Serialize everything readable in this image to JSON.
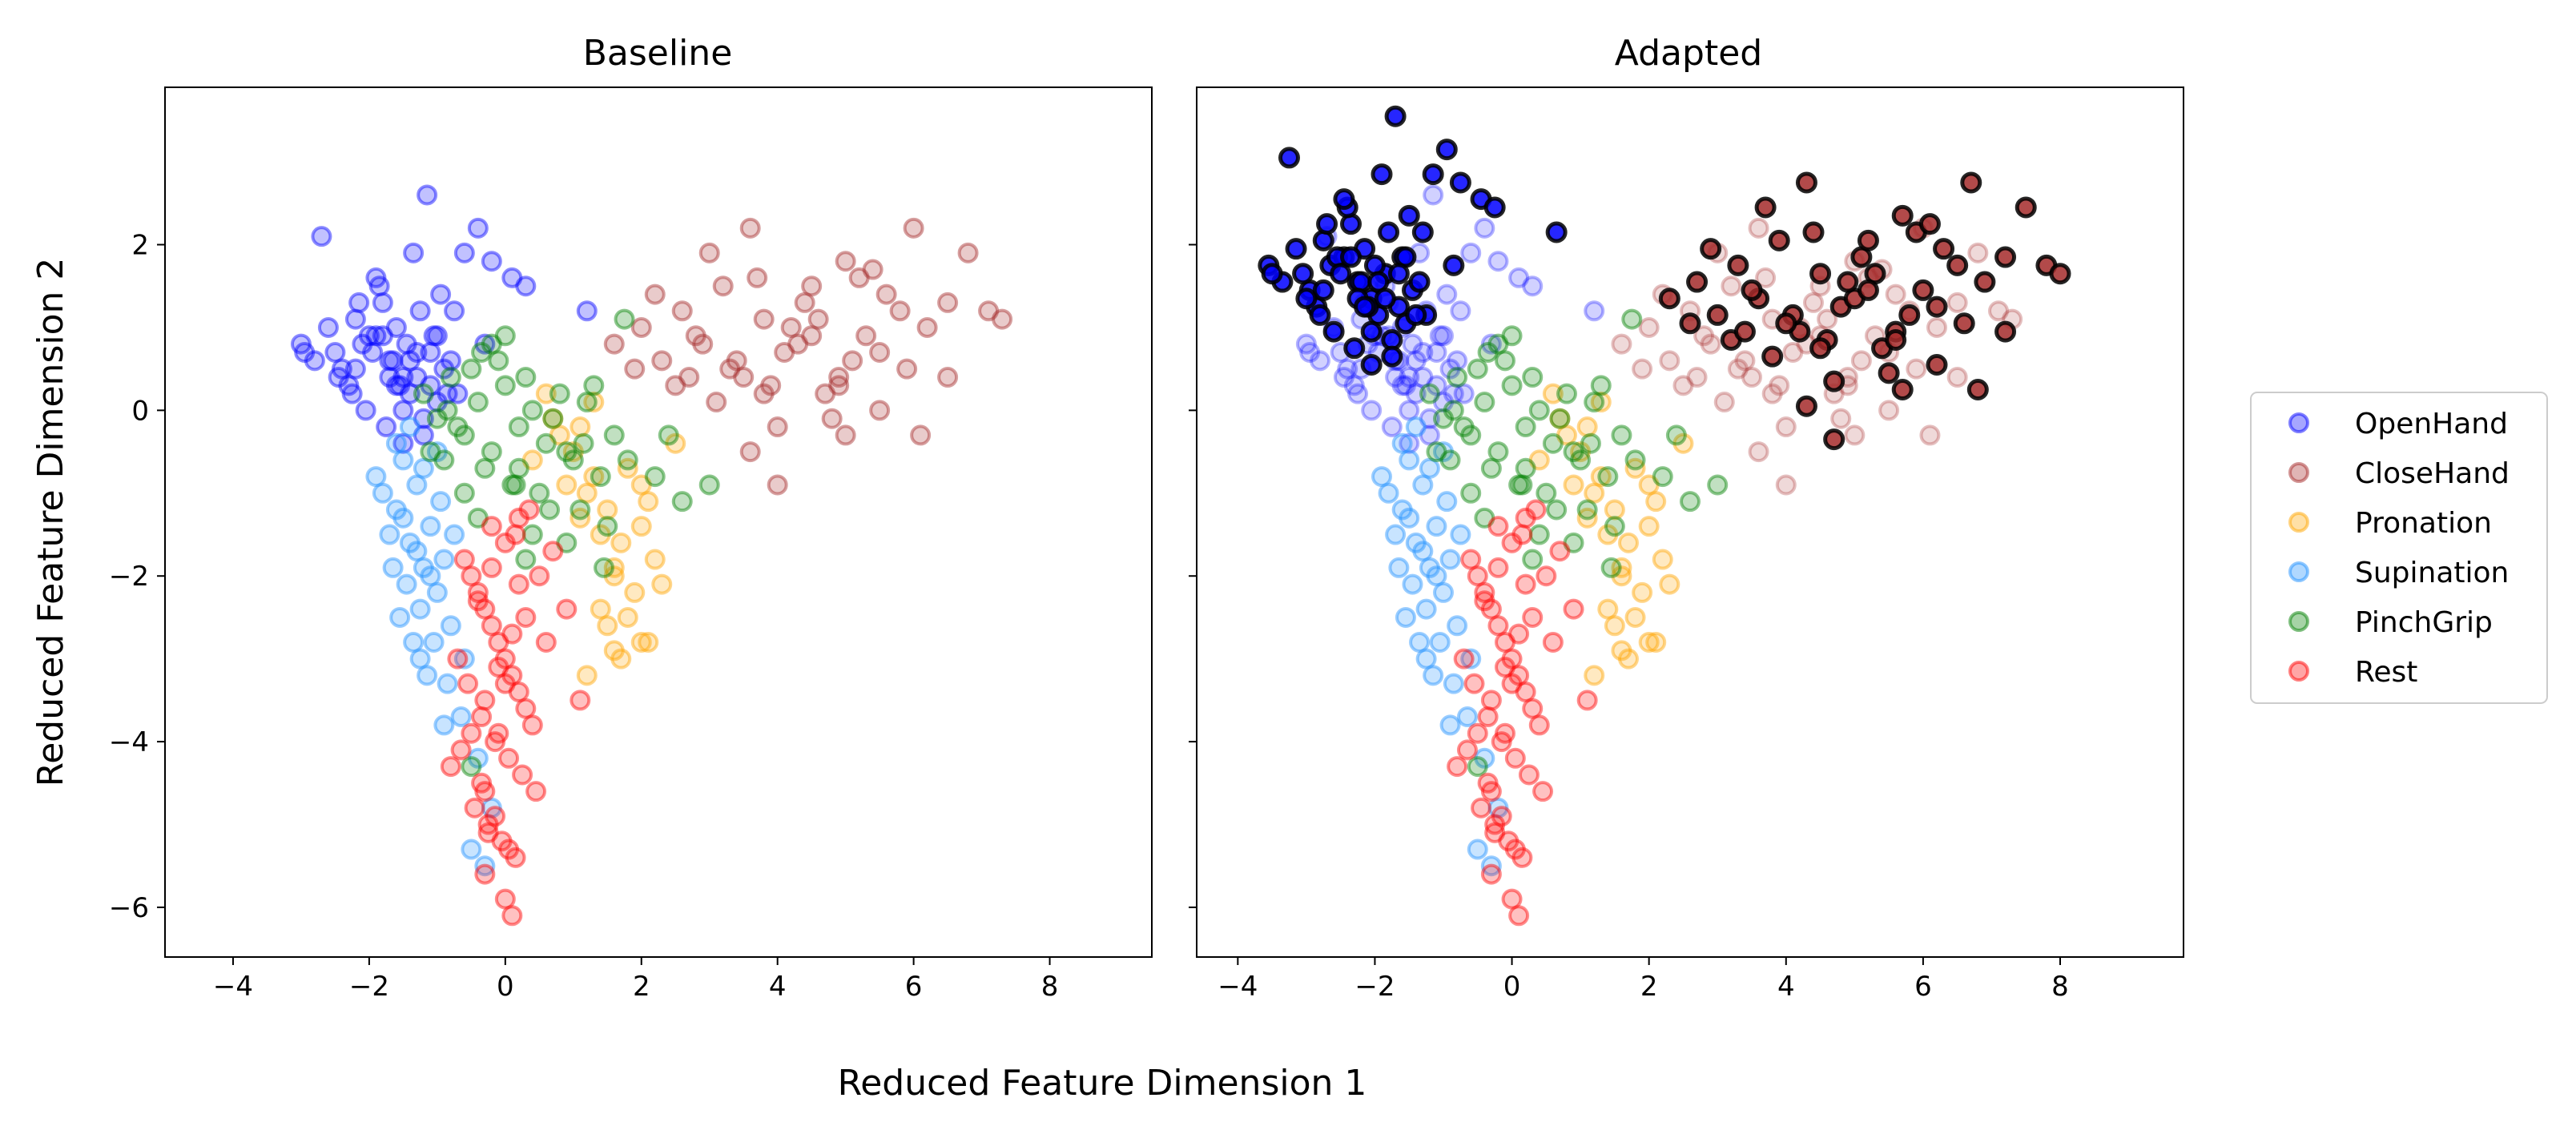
{
  "chart_data": {
    "type": "scatter",
    "xlabel": "Reduced Feature Dimension 1",
    "ylabel": "Reduced Feature Dimension 2",
    "sharey": true,
    "legend_position": "right-center",
    "legend": [
      "OpenHand",
      "CloseHand",
      "Pronation",
      "Supination",
      "PinchGrip",
      "Rest"
    ],
    "colors": {
      "OpenHand": "#0000ff",
      "CloseHand": "#a52a2a",
      "Pronation": "#ffa500",
      "Supination": "#1e90ff",
      "PinchGrip": "#008000",
      "Rest": "#ff0000",
      "highlight_edge": "#000000"
    },
    "panels": [
      {
        "title": "Baseline",
        "xlim": [
          -5,
          9.5
        ],
        "ylim": [
          -6.6,
          3.9
        ],
        "xticks": [
          -4,
          -2,
          0,
          2,
          4,
          6,
          8
        ],
        "yticks": [
          -6,
          -4,
          -2,
          0,
          2
        ],
        "highlighted_classes": []
      },
      {
        "title": "Adapted",
        "xlim": [
          -4.6,
          9.8
        ],
        "ylim": [
          -6.6,
          3.9
        ],
        "xticks": [
          -4,
          -2,
          0,
          2,
          4,
          6,
          8
        ],
        "yticks": [
          -6,
          -4,
          -2,
          0,
          2
        ],
        "highlighted_classes": [
          "OpenHand",
          "CloseHand"
        ]
      }
    ],
    "series": [
      {
        "name": "OpenHand",
        "alpha": 0.35,
        "x": [
          -2.4,
          -2.1,
          -1.9,
          -1.7,
          -1.5,
          -1.3,
          -1.1,
          -0.9,
          -0.7,
          -2.2,
          -1.8,
          -1.6,
          -1.4,
          -1.2,
          -1.0,
          -2.5,
          -2.3,
          -2.0,
          -1.85,
          -1.65,
          -1.45,
          -1.25,
          -1.05,
          -2.8,
          -3.0,
          -2.6,
          -1.9,
          -2.05,
          -1.75,
          -1.55,
          -0.6,
          -0.4,
          -0.2,
          -2.7,
          -2.95,
          -1.35,
          -1.15,
          -0.85,
          -2.15,
          -1.95,
          -1.7,
          -1.5,
          -0.95,
          -0.75,
          -0.3,
          0.1,
          0.3,
          1.2,
          -2.2,
          -1.8,
          -1.6,
          -1.4,
          -1.2,
          -2.45,
          -2.25,
          -1.0,
          -0.8,
          -1.3,
          -1.1,
          -1.5
        ],
        "y": [
          0.5,
          0.8,
          0.9,
          0.6,
          0.4,
          0.7,
          0.3,
          0.5,
          0.2,
          1.1,
          1.3,
          1.0,
          0.2,
          -0.1,
          0.1,
          0.7,
          0.3,
          0.9,
          1.5,
          0.6,
          0.8,
          1.2,
          0.9,
          0.6,
          0.8,
          1.0,
          1.6,
          0.0,
          -0.2,
          0.3,
          1.9,
          2.2,
          1.8,
          2.1,
          0.7,
          1.9,
          2.6,
          0.2,
          1.3,
          0.7,
          0.4,
          -0.4,
          1.4,
          1.2,
          0.8,
          1.6,
          1.5,
          1.2,
          0.5,
          0.9,
          0.3,
          0.6,
          -0.3,
          0.4,
          0.2,
          0.9,
          0.6,
          0.4,
          0.7,
          0.0
        ]
      },
      {
        "name": "CloseHand",
        "alpha": 0.35,
        "x": [
          2.0,
          2.3,
          2.6,
          2.9,
          3.2,
          3.5,
          3.8,
          4.1,
          4.4,
          4.7,
          5.0,
          5.3,
          5.6,
          5.9,
          6.2,
          6.5,
          6.8,
          7.1,
          2.5,
          2.8,
          3.1,
          3.4,
          3.7,
          4.0,
          4.3,
          4.6,
          4.9,
          5.2,
          5.5,
          5.8,
          6.1,
          3.0,
          3.3,
          3.6,
          3.9,
          4.2,
          4.5,
          4.8,
          5.1,
          5.4,
          1.6,
          1.9,
          2.2,
          3.6,
          4.0,
          5.0,
          5.5,
          6.0,
          6.5,
          7.3,
          4.5,
          3.8,
          2.7,
          4.9
        ],
        "y": [
          1.0,
          0.6,
          1.2,
          0.8,
          1.5,
          0.4,
          1.1,
          0.7,
          1.3,
          0.2,
          1.8,
          0.9,
          1.4,
          0.5,
          1.0,
          0.4,
          1.9,
          1.2,
          0.3,
          0.9,
          0.1,
          0.6,
          1.6,
          -0.2,
          0.8,
          1.1,
          0.4,
          1.6,
          0.7,
          1.2,
          -0.3,
          1.9,
          0.5,
          2.2,
          0.3,
          1.0,
          1.5,
          -0.1,
          0.6,
          1.7,
          0.8,
          0.5,
          1.4,
          -0.5,
          -0.9,
          -0.3,
          0.0,
          2.2,
          1.3,
          1.1,
          0.9,
          0.2,
          0.4,
          0.3
        ]
      },
      {
        "name": "Pronation",
        "alpha": 0.35,
        "x": [
          1.0,
          1.2,
          1.4,
          1.6,
          1.8,
          2.0,
          2.2,
          1.1,
          1.3,
          1.5,
          1.7,
          1.9,
          2.1,
          0.8,
          0.6,
          0.4,
          0.9,
          1.5,
          1.7,
          2.0,
          2.3,
          2.5,
          1.2,
          1.4,
          1.6,
          1.8,
          2.1,
          1.3,
          1.1,
          0.7,
          2.0,
          1.6
        ],
        "y": [
          -0.5,
          -1.0,
          -1.5,
          -2.0,
          -2.5,
          -2.8,
          -1.8,
          -0.2,
          -0.8,
          -1.2,
          -1.6,
          -2.2,
          -1.1,
          -0.3,
          0.2,
          -0.6,
          -0.9,
          -2.6,
          -3.0,
          -1.4,
          -2.1,
          -0.4,
          -3.2,
          -2.4,
          -1.9,
          -0.7,
          -2.8,
          0.1,
          -1.3,
          -0.1,
          -0.9,
          -2.9
        ]
      },
      {
        "name": "Supination",
        "alpha": 0.35,
        "x": [
          -1.8,
          -1.6,
          -1.4,
          -1.2,
          -1.0,
          -0.8,
          -0.6,
          -1.5,
          -1.3,
          -1.1,
          -0.9,
          -1.7,
          -1.9,
          -1.45,
          -1.25,
          -1.05,
          -0.85,
          -0.65,
          -1.55,
          -1.35,
          -1.15,
          -0.95,
          -0.75,
          -1.6,
          -1.4,
          -1.2,
          -1.0,
          -1.5,
          -1.3,
          -1.1,
          -0.5,
          -0.3,
          -0.4,
          -0.2,
          -1.65,
          -1.25,
          -0.9
        ],
        "y": [
          -1.0,
          -1.2,
          -1.6,
          -1.9,
          -2.2,
          -2.6,
          -3.0,
          -0.6,
          -0.9,
          -1.4,
          -1.8,
          -1.5,
          -0.8,
          -2.1,
          -2.4,
          -2.8,
          -3.3,
          -3.7,
          -2.5,
          -2.8,
          -3.2,
          -1.1,
          -1.5,
          -0.4,
          -0.2,
          -0.7,
          -0.5,
          -1.3,
          -1.7,
          -2.0,
          -5.3,
          -5.5,
          -4.2,
          -4.8,
          -1.9,
          -3.0,
          -3.8
        ]
      },
      {
        "name": "PinchGrip",
        "alpha": 0.35,
        "x": [
          -1.2,
          -1.0,
          -0.8,
          -0.6,
          -0.4,
          -0.2,
          0.0,
          0.2,
          0.4,
          0.6,
          0.8,
          1.0,
          1.2,
          1.4,
          1.6,
          -0.9,
          -0.7,
          -0.5,
          -0.3,
          -0.1,
          0.1,
          0.3,
          0.5,
          0.7,
          0.9,
          1.1,
          1.3,
          1.5,
          -0.6,
          -0.4,
          -0.2,
          0.0,
          0.2,
          0.4,
          -1.1,
          -0.85,
          -0.35,
          0.15,
          0.65,
          1.15,
          1.75,
          2.2,
          2.6,
          3.0,
          0.9,
          1.8,
          -0.5,
          0.3,
          1.45,
          2.4
        ],
        "y": [
          0.2,
          -0.1,
          0.4,
          -0.3,
          0.1,
          -0.5,
          0.3,
          -0.2,
          0.0,
          -0.4,
          0.2,
          -0.6,
          0.1,
          -0.8,
          -0.3,
          -0.6,
          -0.2,
          0.5,
          -0.7,
          0.6,
          -0.9,
          0.4,
          -1.0,
          -0.1,
          -0.5,
          -1.2,
          0.3,
          -1.4,
          -1.0,
          -1.3,
          0.8,
          0.9,
          -0.7,
          -1.5,
          -0.5,
          0.0,
          0.7,
          -0.9,
          -1.2,
          -0.4,
          1.1,
          -0.8,
          -1.1,
          -0.9,
          -1.6,
          -0.6,
          -4.3,
          -1.8,
          -1.9,
          -0.3
        ]
      },
      {
        "name": "Rest",
        "alpha": 0.35,
        "x": [
          -0.6,
          -0.4,
          -0.2,
          0.0,
          0.2,
          0.4,
          -0.5,
          -0.3,
          -0.1,
          0.1,
          0.3,
          -0.7,
          -0.55,
          -0.35,
          -0.15,
          0.05,
          0.25,
          0.45,
          -0.45,
          -0.25,
          -0.05,
          0.15,
          0.35,
          -0.65,
          -0.5,
          -0.3,
          -0.1,
          0.1,
          -0.4,
          -0.2,
          0.0,
          0.2,
          -0.35,
          -0.15,
          0.05,
          -0.25,
          0.0,
          -0.3,
          0.1,
          0.3,
          0.5,
          0.7,
          0.9,
          1.1,
          -0.8,
          -0.2,
          0.2,
          0.6,
          0.0,
          -0.1,
          -0.3,
          0.15
        ],
        "y": [
          -1.8,
          -2.2,
          -2.6,
          -3.0,
          -3.4,
          -3.8,
          -2.0,
          -2.4,
          -2.8,
          -3.2,
          -3.6,
          -3.0,
          -3.3,
          -3.7,
          -4.0,
          -4.2,
          -4.4,
          -4.6,
          -4.8,
          -5.0,
          -5.2,
          -1.5,
          -1.2,
          -4.1,
          -3.9,
          -3.5,
          -3.1,
          -2.7,
          -2.3,
          -1.9,
          -1.6,
          -1.3,
          -4.5,
          -4.9,
          -5.3,
          -5.1,
          -5.9,
          -5.6,
          -6.1,
          -2.5,
          -2.0,
          -1.7,
          -2.4,
          -3.5,
          -4.3,
          -1.4,
          -2.1,
          -2.8,
          -3.3,
          -3.9,
          -4.6,
          -5.4
        ]
      }
    ],
    "adapted_shift": {
      "OpenHand": {
        "dx": -0.55,
        "dy": 0.95
      },
      "CloseHand": {
        "dx": 0.7,
        "dy": 0.55
      }
    }
  }
}
